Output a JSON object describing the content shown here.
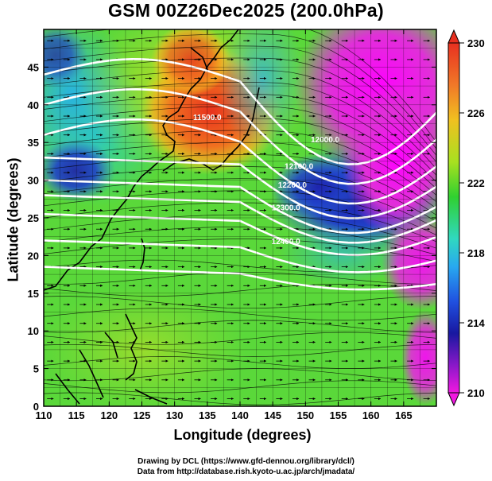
{
  "title": "GSM 00Z26Dec2025 (200.0hPa)",
  "xlabel": "Longitude (degrees)",
  "ylabel": "Latitude  (degrees)",
  "credits": {
    "line1": "Drawing by DCL (https://www.gfd-dennou.org/library/dcl/)",
    "line2": "Data from http://database.rish.kyoto-u.ac.jp/arch/jmadata/"
  },
  "colorbar": {
    "ticks": [
      "230",
      "226",
      "222",
      "218",
      "214",
      "210"
    ]
  },
  "chart_data": {
    "type": "heatmap",
    "title": "GSM 00Z26Dec2025 (200.0hPa)",
    "xlabel": "Longitude (degrees)",
    "ylabel": "Latitude  (degrees)",
    "xlim": [
      110,
      170
    ],
    "ylim": [
      0,
      50
    ],
    "x_ticks": [
      "110",
      "115",
      "120",
      "125",
      "130",
      "135",
      "140",
      "145",
      "150",
      "155",
      "160",
      "165"
    ],
    "y_ticks": [
      "0",
      "5",
      "10",
      "15",
      "20",
      "25",
      "30",
      "35",
      "40",
      "45"
    ],
    "colorbar_range": [
      210,
      230
    ],
    "colorbar_ticks": [
      230,
      226,
      222,
      218,
      214,
      210
    ],
    "contour_labels": [
      {
        "text": "11500.0",
        "lon": 135,
        "lat": 38
      },
      {
        "text": "12000.0",
        "lon": 153,
        "lat": 35
      },
      {
        "text": "12100.0",
        "lon": 149,
        "lat": 31.5
      },
      {
        "text": "12200.0",
        "lon": 148,
        "lat": 29
      },
      {
        "text": "12300.0",
        "lon": 147,
        "lat": 26
      },
      {
        "text": "12400.0",
        "lon": 147,
        "lat": 21.5
      }
    ]
  }
}
